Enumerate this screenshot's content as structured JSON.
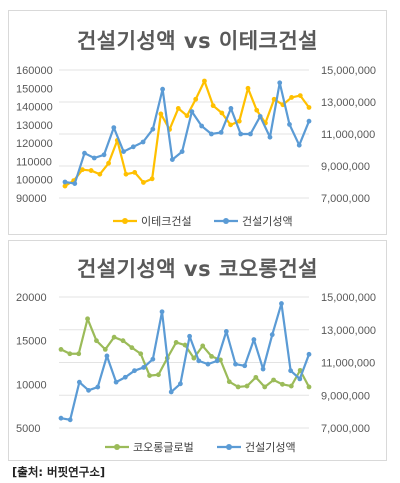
{
  "chart_data": [
    {
      "type": "line",
      "title": "건설기성액 vs 이테크건설",
      "ylim_left": [
        90000,
        160000
      ],
      "yticks_left": [
        "160000",
        "150000",
        "140000",
        "130000",
        "120000",
        "110000",
        "100000",
        "90000"
      ],
      "ylim_right": [
        7000000,
        15000000
      ],
      "yticks_right": [
        "15,000,000",
        "13,000,000",
        "11,000,000",
        "9,000,000",
        "7,000,000"
      ],
      "series": [
        {
          "name": "이테크건설",
          "axis": "left",
          "color": "#ffc000",
          "values": [
            96500,
            99500,
            105500,
            105000,
            103000,
            109000,
            121500,
            103000,
            104000,
            98500,
            100500,
            136000,
            127500,
            139000,
            135000,
            144000,
            154000,
            140500,
            136500,
            130000,
            132000,
            150000,
            138000,
            131000,
            144000,
            141000,
            145000,
            146000,
            139500
          ]
        },
        {
          "name": "건설기성액",
          "axis": "right",
          "color": "#5b9bd5",
          "values": [
            8000000,
            7900000,
            9800000,
            9500000,
            9700000,
            11400000,
            9900000,
            10200000,
            10500000,
            11300000,
            13800000,
            9400000,
            9900000,
            12400000,
            11500000,
            11000000,
            11100000,
            12600000,
            11000000,
            11000000,
            12100000,
            10800000,
            14200000,
            11600000,
            10300000,
            11800000
          ]
        }
      ],
      "grid": true,
      "legend_position": "bottom"
    },
    {
      "type": "line",
      "title": "건설기성액 vs 코오롱건설",
      "ylim_left": [
        5000,
        20000
      ],
      "yticks_left": [
        "20000",
        "15000",
        "10000",
        "5000"
      ],
      "ylim_right": [
        7000000,
        15000000
      ],
      "yticks_right": [
        "15,000,000",
        "13,000,000",
        "11,000,000",
        "9,000,000",
        "7,000,000"
      ],
      "series": [
        {
          "name": "코오롱글로벌",
          "axis": "left",
          "color": "#9bbb59",
          "values": [
            14000,
            13500,
            13500,
            17500,
            15000,
            14000,
            15400,
            15000,
            14200,
            13500,
            11000,
            11100,
            13000,
            14800,
            14500,
            13000,
            14400,
            13200,
            12800,
            10300,
            9700,
            9800,
            10800,
            9700,
            10500,
            10000,
            9800,
            11600,
            9700
          ]
        },
        {
          "name": "건설기성액",
          "axis": "right",
          "color": "#5b9bd5",
          "values": [
            7600000,
            7500000,
            9800000,
            9300000,
            9500000,
            11400000,
            9800000,
            10100000,
            10500000,
            10700000,
            11200000,
            14100000,
            9200000,
            9700000,
            12600000,
            11100000,
            10900000,
            11100000,
            12900000,
            10900000,
            10800000,
            12400000,
            10600000,
            12700000,
            14600000,
            10500000,
            10000000,
            11500000
          ]
        }
      ],
      "grid": true,
      "legend_position": "bottom"
    }
  ],
  "source": "[출처: 버핏연구소]"
}
